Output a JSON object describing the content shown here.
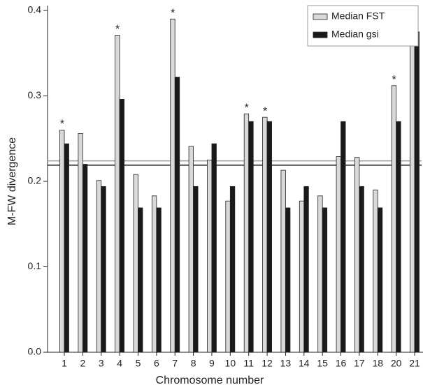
{
  "chart_data": {
    "type": "bar",
    "x_label": "Chromosome number",
    "y_label": "M-FW divergence",
    "categories": [
      "1",
      "2",
      "3",
      "4",
      "5",
      "6",
      "7",
      "8",
      "9",
      "10",
      "11",
      "12",
      "13",
      "14",
      "15",
      "16",
      "17",
      "18",
      "20",
      "21"
    ],
    "series": [
      {
        "name": "Median FST",
        "color": "#d9d9d9",
        "values": [
          0.26,
          0.256,
          0.201,
          0.371,
          0.208,
          0.183,
          0.39,
          0.241,
          0.225,
          0.177,
          0.279,
          0.275,
          0.213,
          0.177,
          0.183,
          0.229,
          0.228,
          0.19,
          0.312,
          0.362
        ]
      },
      {
        "name": "Median gsi",
        "color": "#1a1a1a",
        "values": [
          0.244,
          0.22,
          0.194,
          0.296,
          0.169,
          0.169,
          0.322,
          0.194,
          0.244,
          0.194,
          0.27,
          0.27,
          0.169,
          0.194,
          0.169,
          0.27,
          0.194,
          0.169,
          0.27,
          0.375
        ]
      }
    ],
    "annotations": [
      "*",
      null,
      null,
      "*",
      null,
      null,
      "*",
      null,
      null,
      null,
      "*",
      "*",
      null,
      null,
      null,
      null,
      null,
      null,
      "*",
      null
    ],
    "reference_lines": [
      {
        "value": 0.224,
        "color": "#999999"
      },
      {
        "value": 0.219,
        "color": "#111111"
      }
    ],
    "ylim": [
      0,
      0.4
    ],
    "yticks": [
      {
        "value": 0,
        "label": "0.0"
      },
      0.1,
      0.2,
      0.3,
      0.4
    ],
    "legend": "top-right"
  }
}
